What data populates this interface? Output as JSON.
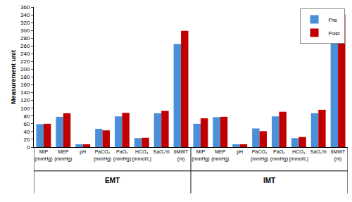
{
  "chart_data": {
    "type": "bar",
    "y_label": "Measurement unit",
    "categories": [
      "MIP\n(mmHg)",
      "MEP\n(mmHg)",
      "pH",
      "PaCO₂\n(mmHg)",
      "PaO₂\n(mmHg)",
      "HCO₃\n(mmol/L)",
      "SaO₂%",
      "6MWT\n(m)",
      "MIP\n(mmHg)",
      "MEP\n(mmHg)",
      "pH",
      "PaCO₂\n(mmHg)",
      "PaO₂\n(mmHg)",
      "HCO₃\n(mmol/L)",
      "SaO₂%",
      "6MWT\n(m)"
    ],
    "groups": [
      "EMT",
      "EMT",
      "EMT",
      "EMT",
      "EMT",
      "EMT",
      "EMT",
      "EMT",
      "IMT",
      "IMT",
      "IMT",
      "IMT",
      "IMT",
      "IMT",
      "IMT",
      "IMT"
    ],
    "series": [
      {
        "name": "Pre",
        "color": "#4a90d9",
        "values": [
          59,
          78,
          7.4,
          47,
          79,
          23,
          87,
          265,
          60,
          77,
          7.4,
          48,
          79,
          23,
          87,
          272
        ]
      },
      {
        "name": "Post",
        "color": "#c00000",
        "values": [
          60,
          87,
          7.4,
          43,
          88,
          24,
          93,
          299,
          74,
          78,
          7.4,
          41,
          91,
          26,
          96,
          341
        ]
      }
    ],
    "ylim": [
      0,
      360
    ],
    "yticks": [
      0,
      20,
      40,
      60,
      80,
      100,
      120,
      140,
      160,
      180,
      200,
      220,
      240,
      260,
      280,
      300,
      320,
      340,
      360
    ],
    "grid": false,
    "legend": "top right"
  }
}
